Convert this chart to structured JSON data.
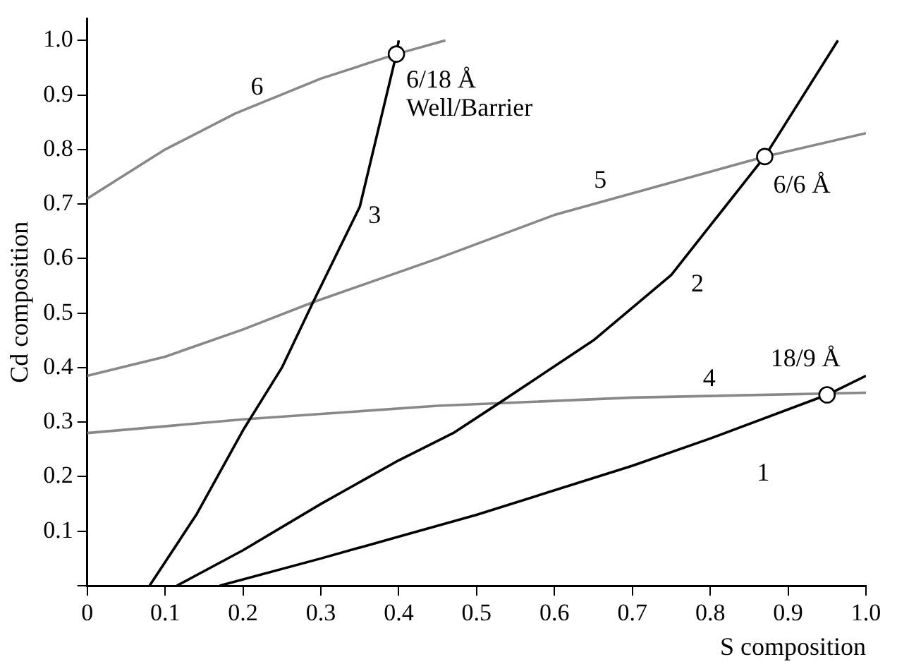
{
  "chart_data": {
    "type": "line",
    "xlabel": "S composition",
    "ylabel": "Cd composition",
    "xlim": [
      0,
      1.0
    ],
    "ylim": [
      0,
      1.04
    ],
    "xticks": [
      {
        "value": 0,
        "label": "0"
      },
      0.1,
      0.2,
      0.3,
      0.4,
      0.5,
      0.6,
      0.7,
      0.8,
      0.9,
      {
        "value": 1.0,
        "label": "1.0"
      }
    ],
    "yticks": [
      {
        "value": 0,
        "label": null
      },
      0.1,
      0.2,
      0.3,
      0.4,
      0.5,
      0.6,
      0.7,
      0.8,
      0.9,
      {
        "value": 1.0,
        "label": "1.0"
      }
    ],
    "grid": false,
    "legend": false,
    "marker": "none",
    "line_style": "solid",
    "series": [
      {
        "color": "#000000",
        "x": [
          0.17,
          0.3,
          0.5,
          0.7,
          0.8,
          0.95,
          1.0
        ],
        "values": [
          0,
          0.05,
          0.13,
          0.22,
          0.27,
          0.35,
          0.385
        ]
      },
      {
        "color": "#000000",
        "x": [
          0.115,
          0.2,
          0.3,
          0.4,
          0.47,
          0.53,
          0.65,
          0.75,
          0.87,
          0.964
        ],
        "values": [
          0,
          0.065,
          0.15,
          0.23,
          0.28,
          0.336,
          0.45,
          0.57,
          0.787,
          1.0
        ]
      },
      {
        "color": "#000000",
        "x": [
          0.08,
          0.14,
          0.2,
          0.25,
          0.29,
          0.35,
          0.397,
          0.4
        ],
        "values": [
          0,
          0.13,
          0.285,
          0.4,
          0.52,
          0.695,
          0.975,
          1.0
        ]
      },
      {
        "color": "#888888",
        "x": [
          0,
          0.2,
          0.45,
          0.7,
          1.0
        ],
        "values": [
          0.28,
          0.305,
          0.33,
          0.345,
          0.354
        ]
      },
      {
        "color": "#888888",
        "x": [
          0,
          0.1,
          0.2,
          0.29,
          0.45,
          0.6,
          0.87,
          1.0
        ],
        "values": [
          0.385,
          0.42,
          0.47,
          0.52,
          0.6,
          0.68,
          0.787,
          0.83
        ]
      },
      {
        "color": "#888888",
        "x": [
          0,
          0.1,
          0.19,
          0.3,
          0.397,
          0.46
        ],
        "values": [
          0.71,
          0.8,
          0.866,
          0.93,
          0.975,
          1.0
        ]
      },
      {
        "type": "scatter",
        "marker": "circle",
        "color": "#000000",
        "x": [
          0.397,
          0.87,
          0.95
        ],
        "values": [
          0.975,
          0.787,
          0.35
        ]
      }
    ],
    "annotations": [
      {
        "text": "1",
        "x": 0.8,
        "y": 0.27
      },
      {
        "text": "2",
        "x": 0.75,
        "y": 0.57
      },
      {
        "text": "3",
        "x": 0.35,
        "y": 0.695
      },
      {
        "text": "4",
        "x": 0.7,
        "y": 0.345
      },
      {
        "text": "5",
        "x": 0.6,
        "y": 0.68
      },
      {
        "text": "6",
        "x": 0.19,
        "y": 0.866
      },
      {
        "text": "6/18 Å\nWell/Barrier",
        "x": 0.397,
        "y": 0.975
      },
      {
        "text": "6/6 Å",
        "x": 0.87,
        "y": 0.787
      },
      {
        "text": "18/9 Å",
        "x": 0.95,
        "y": 0.35
      }
    ]
  }
}
